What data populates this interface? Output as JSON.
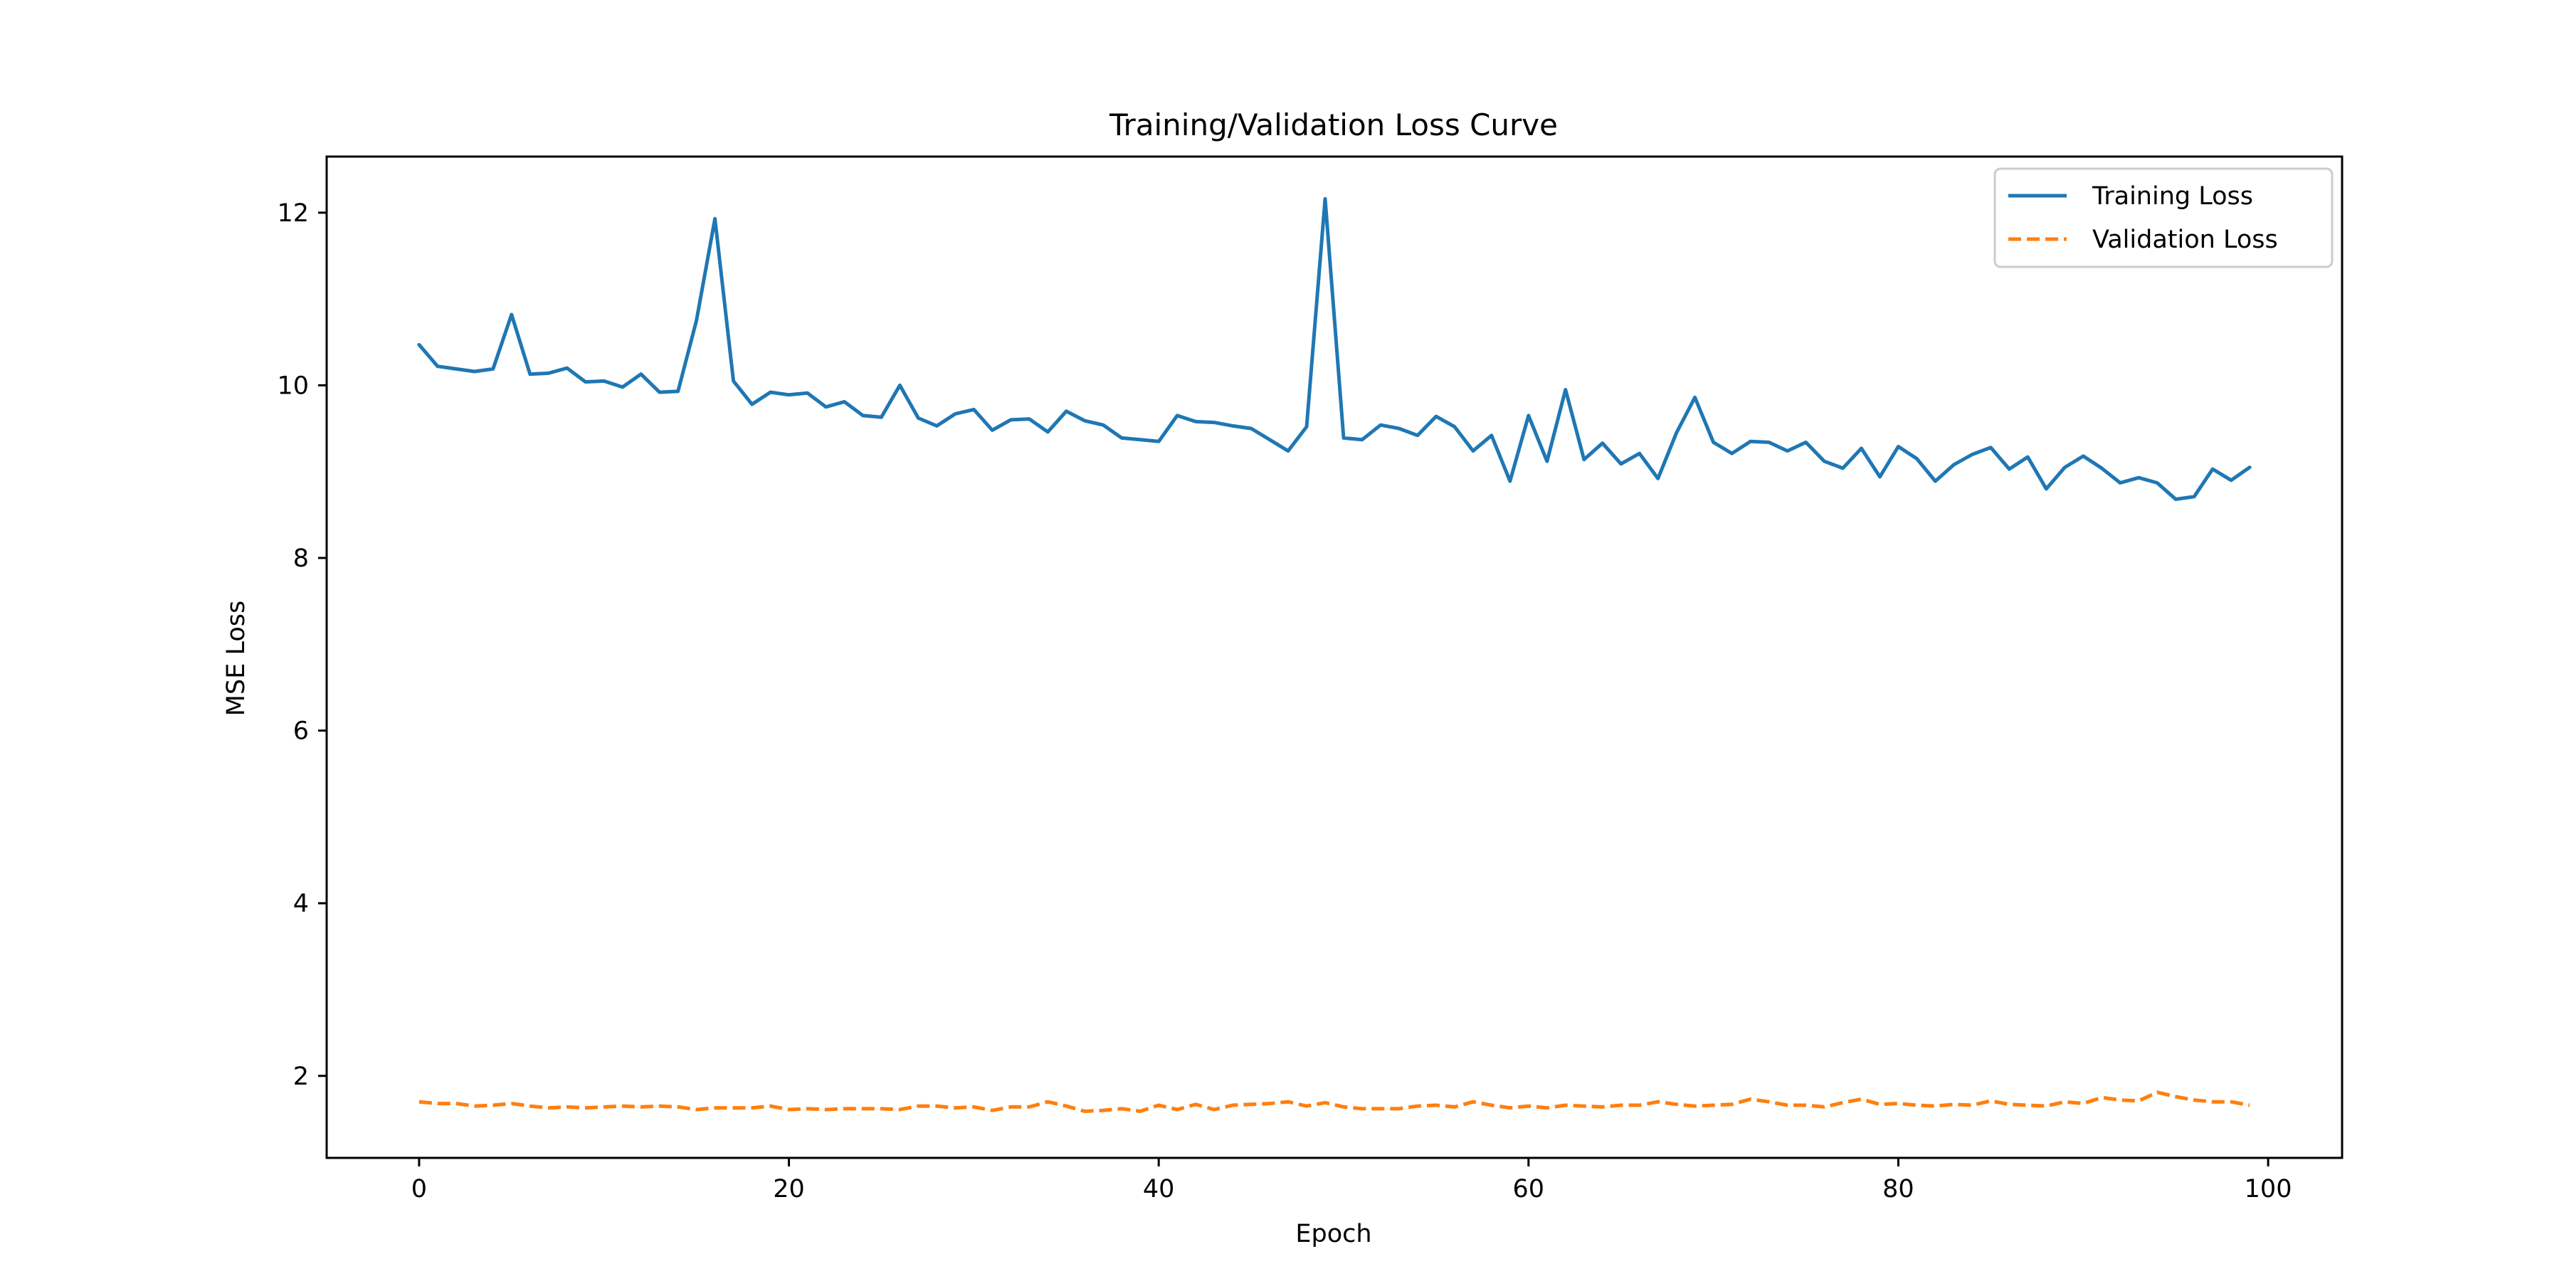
{
  "chart_data": {
    "type": "line",
    "title": "Training/Validation Loss Curve",
    "xlabel": "Epoch",
    "ylabel": "MSE Loss",
    "xlim": [
      -5,
      104
    ],
    "ylim": [
      1.05,
      12.65
    ],
    "xticks": [
      0,
      20,
      40,
      60,
      80,
      100
    ],
    "yticks": [
      2,
      4,
      6,
      8,
      10,
      12
    ],
    "grid": false,
    "legend_position": "top-right",
    "series": [
      {
        "name": "Training Loss",
        "color": "#1f77b4",
        "style": "solid",
        "x": [
          0,
          1,
          2,
          3,
          4,
          5,
          6,
          7,
          8,
          9,
          10,
          11,
          12,
          13,
          14,
          15,
          16,
          17,
          18,
          19,
          20,
          21,
          22,
          23,
          24,
          25,
          26,
          27,
          28,
          29,
          30,
          31,
          32,
          33,
          34,
          35,
          36,
          37,
          38,
          39,
          40,
          41,
          42,
          43,
          44,
          45,
          46,
          47,
          48,
          49,
          50,
          51,
          52,
          53,
          54,
          55,
          56,
          57,
          58,
          59,
          60,
          61,
          62,
          63,
          64,
          65,
          66,
          67,
          68,
          69,
          70,
          71,
          72,
          73,
          74,
          75,
          76,
          77,
          78,
          79,
          80,
          81,
          82,
          83,
          84,
          85,
          86,
          87,
          88,
          89,
          90,
          91,
          92,
          93,
          94,
          95,
          96,
          97,
          98,
          99
        ],
        "values": [
          10.47,
          10.22,
          10.19,
          10.16,
          10.19,
          10.82,
          10.13,
          10.14,
          10.2,
          10.04,
          10.05,
          9.98,
          10.13,
          9.92,
          9.93,
          10.75,
          11.93,
          10.05,
          9.78,
          9.92,
          9.89,
          9.91,
          9.75,
          9.81,
          9.65,
          9.63,
          10.0,
          9.62,
          9.53,
          9.67,
          9.72,
          9.48,
          9.6,
          9.61,
          9.46,
          9.7,
          9.59,
          9.54,
          9.39,
          9.37,
          9.35,
          9.65,
          9.58,
          9.57,
          9.53,
          9.5,
          9.37,
          9.24,
          9.52,
          12.16,
          9.39,
          9.37,
          9.54,
          9.5,
          9.42,
          9.64,
          9.52,
          9.24,
          9.42,
          8.89,
          9.65,
          9.12,
          9.95,
          9.14,
          9.33,
          9.09,
          9.21,
          8.92,
          9.45,
          9.86,
          9.34,
          9.21,
          9.35,
          9.34,
          9.24,
          9.34,
          9.12,
          9.04,
          9.27,
          8.94,
          9.29,
          9.15,
          8.89,
          9.08,
          9.2,
          9.28,
          9.03,
          9.17,
          8.8,
          9.05,
          9.18,
          9.04,
          8.87,
          8.93,
          8.87,
          8.68,
          8.71,
          9.03,
          8.9,
          9.05
        ]
      },
      {
        "name": "Validation Loss",
        "color": "#ff7f0e",
        "style": "dashed",
        "x": [
          0,
          1,
          2,
          3,
          4,
          5,
          6,
          7,
          8,
          9,
          10,
          11,
          12,
          13,
          14,
          15,
          16,
          17,
          18,
          19,
          20,
          21,
          22,
          23,
          24,
          25,
          26,
          27,
          28,
          29,
          30,
          31,
          32,
          33,
          34,
          35,
          36,
          37,
          38,
          39,
          40,
          41,
          42,
          43,
          44,
          45,
          46,
          47,
          48,
          49,
          50,
          51,
          52,
          53,
          54,
          55,
          56,
          57,
          58,
          59,
          60,
          61,
          62,
          63,
          64,
          65,
          66,
          67,
          68,
          69,
          70,
          71,
          72,
          73,
          74,
          75,
          76,
          77,
          78,
          79,
          80,
          81,
          82,
          83,
          84,
          85,
          86,
          87,
          88,
          89,
          90,
          91,
          92,
          93,
          94,
          95,
          96,
          97,
          98,
          99
        ],
        "values": [
          1.7,
          1.68,
          1.68,
          1.65,
          1.66,
          1.68,
          1.65,
          1.63,
          1.64,
          1.63,
          1.64,
          1.65,
          1.64,
          1.65,
          1.64,
          1.61,
          1.63,
          1.63,
          1.63,
          1.65,
          1.61,
          1.62,
          1.61,
          1.62,
          1.62,
          1.62,
          1.61,
          1.65,
          1.65,
          1.63,
          1.64,
          1.6,
          1.64,
          1.64,
          1.7,
          1.65,
          1.59,
          1.6,
          1.62,
          1.59,
          1.66,
          1.61,
          1.67,
          1.61,
          1.66,
          1.67,
          1.68,
          1.7,
          1.65,
          1.69,
          1.64,
          1.62,
          1.62,
          1.62,
          1.65,
          1.66,
          1.64,
          1.7,
          1.66,
          1.63,
          1.65,
          1.63,
          1.66,
          1.65,
          1.64,
          1.66,
          1.66,
          1.7,
          1.67,
          1.65,
          1.66,
          1.67,
          1.73,
          1.7,
          1.66,
          1.66,
          1.64,
          1.69,
          1.73,
          1.67,
          1.68,
          1.66,
          1.65,
          1.67,
          1.66,
          1.71,
          1.67,
          1.66,
          1.65,
          1.7,
          1.68,
          1.75,
          1.72,
          1.71,
          1.81,
          1.76,
          1.72,
          1.7,
          1.7,
          1.66
        ]
      }
    ]
  }
}
